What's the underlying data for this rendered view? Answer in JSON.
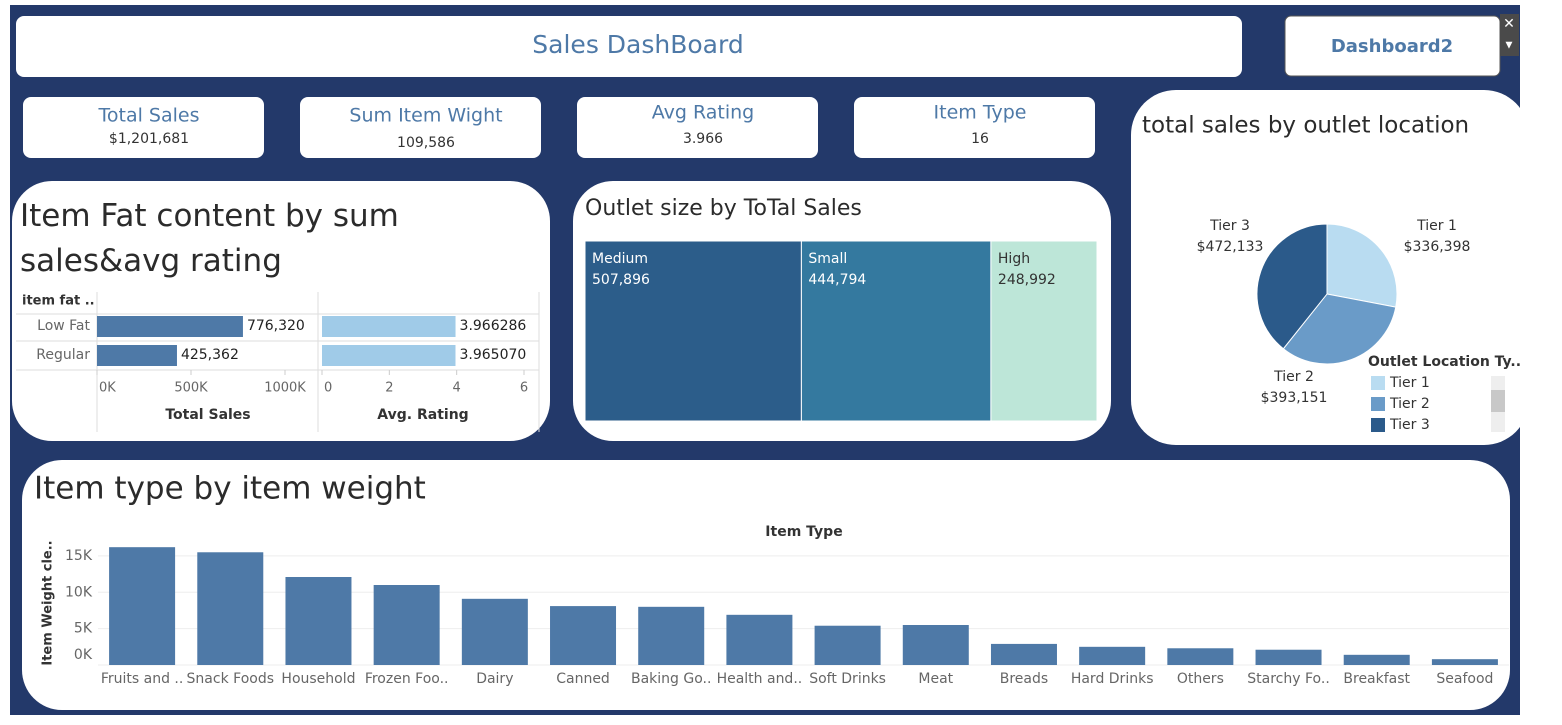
{
  "header": {
    "title": "Sales DashBoard",
    "button": "Dashboard2"
  },
  "kpis": [
    {
      "label": "Total Sales",
      "value": "$1,201,681"
    },
    {
      "label": "Sum Item Wight",
      "value": "109,586"
    },
    {
      "label": "Avg Rating",
      "value": "3.966"
    },
    {
      "label": "Item Type",
      "value": "16"
    }
  ],
  "chart_data": [
    {
      "type": "bar",
      "orientation": "horizontal",
      "title": "Item Fat content by sum sales&avg rating",
      "row_header": "item fat ..",
      "categories": [
        "Low Fat",
        "Regular"
      ],
      "series": [
        {
          "name": "Total Sales",
          "color": "#4e79a7",
          "values": [
            776320,
            425362
          ],
          "value_labels": [
            "776,320",
            "425,362"
          ],
          "xlim": [
            0,
            1000000
          ],
          "xticks": [
            {
              "value": 0,
              "label": "0K"
            },
            {
              "value": 500000,
              "label": "500K"
            },
            {
              "value": 1000000,
              "label": "1000K"
            }
          ]
        },
        {
          "name": "Avg. Rating",
          "color": "#a0cbe8",
          "values": [
            3.966286,
            3.96507
          ],
          "value_labels": [
            "3.966286",
            "3.965070"
          ],
          "xlim": [
            0,
            6
          ],
          "xticks": [
            0,
            2,
            4,
            6
          ]
        }
      ]
    },
    {
      "type": "treemap",
      "title": "Outlet size by ToTal Sales",
      "categories": [
        "Medium",
        "Small",
        "High"
      ],
      "values": [
        507896,
        444794,
        248992
      ],
      "value_labels": [
        "507,896",
        "444,794",
        "248,992"
      ],
      "colors": [
        "#2c5d8a",
        "#34799f",
        "#bde6d8"
      ],
      "text_colors": [
        "#ffffff",
        "#ffffff",
        "#333333"
      ]
    },
    {
      "type": "pie",
      "title": "total sales by outlet location",
      "categories": [
        "Tier 1",
        "Tier 2",
        "Tier 3"
      ],
      "values": [
        336398,
        393151,
        472133
      ],
      "value_labels": [
        "$336,398",
        "$393,151",
        "$472,133"
      ],
      "colors": [
        "#b9dcf1",
        "#6a9bc8",
        "#2b5a8a"
      ],
      "legend_title": "Outlet Location Ty..",
      "legend": "bottom-right"
    },
    {
      "type": "bar",
      "orientation": "vertical",
      "title": "Item type by item weight",
      "x_label": "Item Type",
      "y_label": "Item Weight cle..",
      "color": "#4e79a7",
      "categories": [
        "Fruits and ..",
        "Snack Foods",
        "Household",
        "Frozen Foo..",
        "Dairy",
        "Canned",
        "Baking Go..",
        "Health and..",
        "Soft Drinks",
        "Meat",
        "Breads",
        "Hard Drinks",
        "Others",
        "Starchy Fo..",
        "Breakfast",
        "Seafood"
      ],
      "values": [
        16200,
        15500,
        12100,
        11000,
        9100,
        8100,
        8000,
        6900,
        5400,
        5500,
        2900,
        2500,
        2300,
        2100,
        1400,
        800
      ],
      "ylim": [
        0,
        16500
      ],
      "yticks": [
        {
          "value": 0,
          "label": "0K"
        },
        {
          "value": 5000,
          "label": "5K"
        },
        {
          "value": 10000,
          "label": "10K"
        },
        {
          "value": 15000,
          "label": "15K"
        }
      ],
      "grid": true
    }
  ]
}
